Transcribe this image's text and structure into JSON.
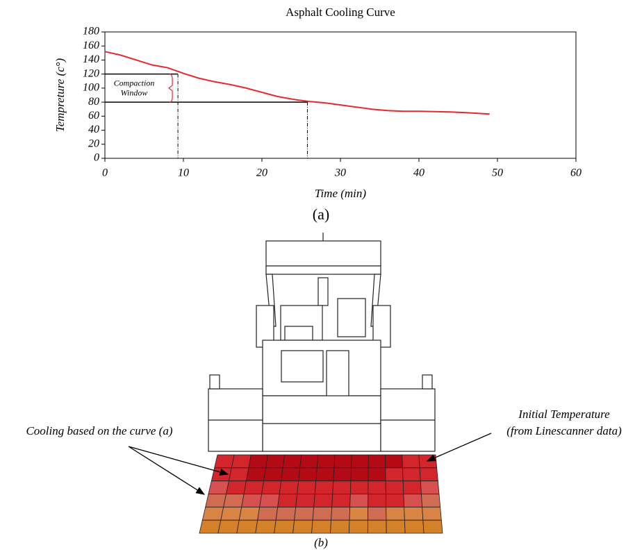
{
  "chart_data": {
    "type": "line",
    "title": "Asphalt Cooling Curve",
    "x_label": "Time (min)",
    "y_label": "Tempreture (c°)",
    "x": [
      0,
      2,
      4,
      6,
      8,
      10,
      12,
      14,
      16,
      18,
      20,
      22,
      24,
      26,
      28,
      30,
      32,
      34,
      36,
      38,
      40,
      42,
      44,
      46,
      49
    ],
    "series": [
      {
        "color": "#e8262b",
        "values": [
          152,
          147,
          140,
          133,
          129,
          121,
          114,
          109,
          105,
          100,
          94,
          88,
          84,
          81,
          79,
          76,
          73,
          70,
          68,
          67,
          67,
          66.5,
          66,
          65,
          63
        ]
      }
    ],
    "reference_points": [
      {
        "x": 9.3,
        "y": 120
      },
      {
        "x": 25.8,
        "y": 80
      }
    ],
    "annotation_lines": [
      "Compaction",
      "Window"
    ],
    "xlim": [
      0,
      60
    ],
    "xticks": [
      0,
      10,
      20,
      30,
      40,
      50,
      60
    ],
    "ylim": [
      0,
      180
    ],
    "yticks": [
      0,
      20,
      40,
      60,
      80,
      100,
      120,
      140,
      160,
      180
    ]
  },
  "figure": {
    "panel_a": "(a)",
    "panel_b": "(b)",
    "left_note": "Cooling based on the curve (a)",
    "right_note_lines": [
      "Initial Temperature",
      "(from Linescanner data)"
    ]
  }
}
